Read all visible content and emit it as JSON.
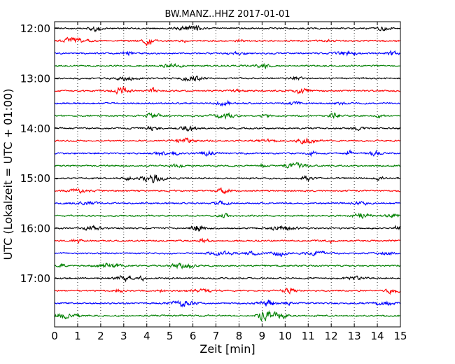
{
  "chart_data": {
    "type": "line",
    "title": "BW.MANZ..HHZ 2017-01-01",
    "xlabel": "Zeit  [min]",
    "ylabel": "UTC (Lokalzeit = UTC + 01:00)",
    "xlim": [
      0,
      15
    ],
    "x_ticks": [
      "0",
      "1",
      "2",
      "3",
      "4",
      "5",
      "6",
      "7",
      "8",
      "9",
      "10",
      "11",
      "12",
      "13",
      "14",
      "15"
    ],
    "y_ticks": [
      "12:00",
      "13:00",
      "14:00",
      "15:00",
      "16:00",
      "17:00"
    ],
    "x_grid": "dotted vertical lines at each minute",
    "trace_colors": [
      "#000000",
      "#ff0000",
      "#0000ff",
      "#008000"
    ],
    "traces_start_utc": "12:00",
    "trace_interval_min": 15,
    "trace_count": 24
  }
}
